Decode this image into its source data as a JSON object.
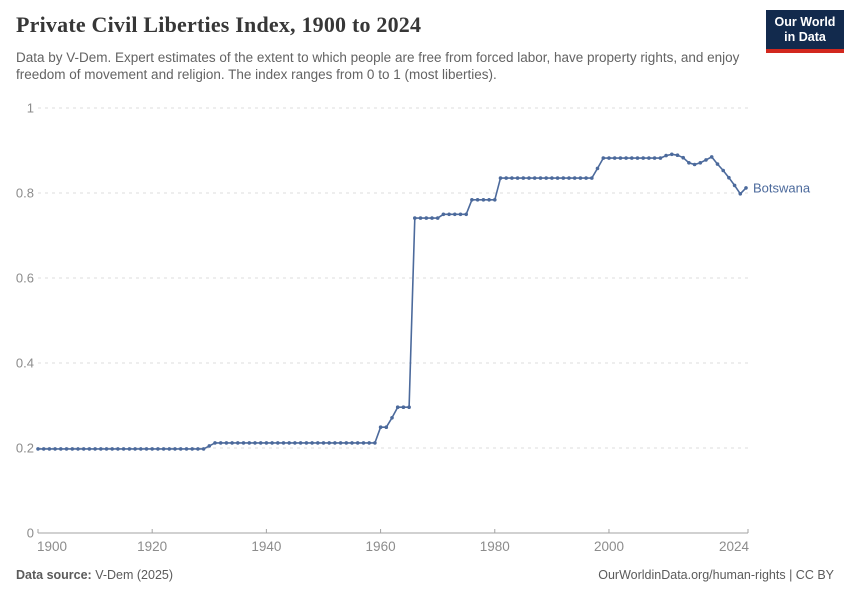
{
  "header": {
    "title": "Private Civil Liberties Index, 1900 to 2024",
    "subtitle": "Data by V-Dem. Expert estimates of the extent to which people are free from forced labor, have property rights, and enjoy freedom of movement and religion. The index ranges from 0 to 1 (most liberties).",
    "logo": {
      "line1": "Our World",
      "line2": "in Data",
      "bg_color": "#122a4d",
      "accent_color": "#d2281e"
    }
  },
  "footer": {
    "source_label": "Data source:",
    "source_value": " V-Dem (2025)",
    "right_text": "OurWorldinData.org/human-rights | CC BY"
  },
  "chart_data": {
    "type": "line",
    "title": "Private Civil Liberties Index, 1900 to 2024",
    "xlabel": "",
    "ylabel": "",
    "xlim": [
      1900,
      2024
    ],
    "ylim": [
      0,
      1
    ],
    "grid": "horizontal-dashed",
    "grid_color": "#dcdcdc",
    "axis_color": "#a3a3a3",
    "tick_label_color": "#8c8c8c",
    "x_ticks": [
      1900,
      1920,
      1940,
      1960,
      1980,
      2000,
      2024
    ],
    "y_ticks": [
      0,
      0.2,
      0.4,
      0.6,
      0.8,
      1
    ],
    "y_tick_labels": [
      "0",
      "0.2",
      "0.4",
      "0.6",
      "0.8",
      "1"
    ],
    "entity_label": "Botswana",
    "series": [
      {
        "name": "Botswana",
        "color": "#4c6a9c",
        "start_year": 1900,
        "end_year": 2024,
        "values": [
          0.198,
          0.198,
          0.198,
          0.198,
          0.198,
          0.198,
          0.198,
          0.198,
          0.198,
          0.198,
          0.198,
          0.198,
          0.198,
          0.198,
          0.198,
          0.198,
          0.198,
          0.198,
          0.198,
          0.198,
          0.198,
          0.198,
          0.198,
          0.198,
          0.198,
          0.198,
          0.198,
          0.198,
          0.198,
          0.198,
          0.205,
          0.212,
          0.212,
          0.212,
          0.212,
          0.212,
          0.212,
          0.212,
          0.212,
          0.212,
          0.212,
          0.212,
          0.212,
          0.212,
          0.212,
          0.212,
          0.212,
          0.212,
          0.212,
          0.212,
          0.212,
          0.212,
          0.212,
          0.212,
          0.212,
          0.212,
          0.212,
          0.212,
          0.212,
          0.212,
          0.249,
          0.249,
          0.271,
          0.296,
          0.296,
          0.296,
          0.741,
          0.741,
          0.741,
          0.741,
          0.741,
          0.75,
          0.75,
          0.75,
          0.75,
          0.75,
          0.784,
          0.784,
          0.784,
          0.784,
          0.784,
          0.835,
          0.835,
          0.835,
          0.835,
          0.835,
          0.835,
          0.835,
          0.835,
          0.835,
          0.835,
          0.835,
          0.835,
          0.835,
          0.835,
          0.835,
          0.835,
          0.835,
          0.858,
          0.882,
          0.882,
          0.882,
          0.882,
          0.882,
          0.882,
          0.882,
          0.882,
          0.882,
          0.882,
          0.882,
          0.888,
          0.891,
          0.889,
          0.883,
          0.871,
          0.867,
          0.871,
          0.878,
          0.885,
          0.868,
          0.853,
          0.836,
          0.818,
          0.798,
          0.812
        ]
      }
    ]
  }
}
